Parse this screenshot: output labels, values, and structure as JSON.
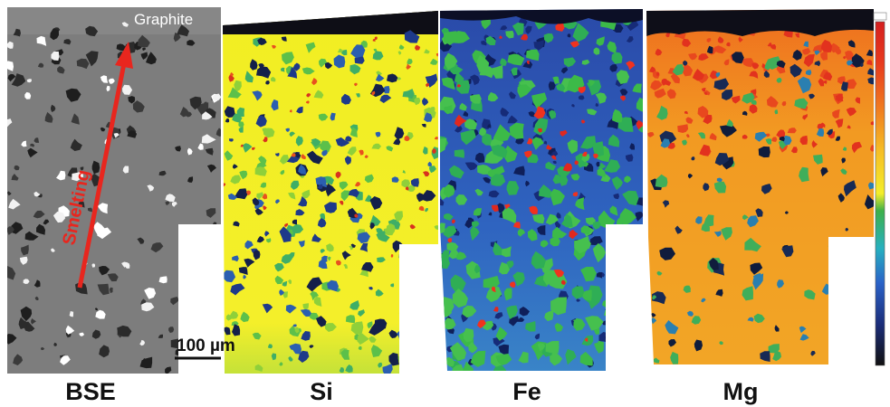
{
  "figure": {
    "panels": [
      {
        "label": "BSE"
      },
      {
        "label": "Si"
      },
      {
        "label": "Fe"
      },
      {
        "label": "Mg"
      }
    ],
    "annotations": {
      "top_label": "Graphite",
      "arrow_label": "Smelting",
      "scale_bar": "100 µm"
    },
    "colors": {
      "arrow": "#e8261e",
      "bse_matrix": "#7d7d7d",
      "si_matrix": "#f2ee1e",
      "fe_matrix": "#2f5fbf",
      "mg_matrix": "#f0a020",
      "pore": "#142040",
      "colorbar": [
        "#d51f1f",
        "#f07a20",
        "#f6c026",
        "#f4ee2a",
        "#3db04a",
        "#26b0c0",
        "#2a62c8",
        "#1b2d7a",
        "#111111"
      ]
    }
  }
}
